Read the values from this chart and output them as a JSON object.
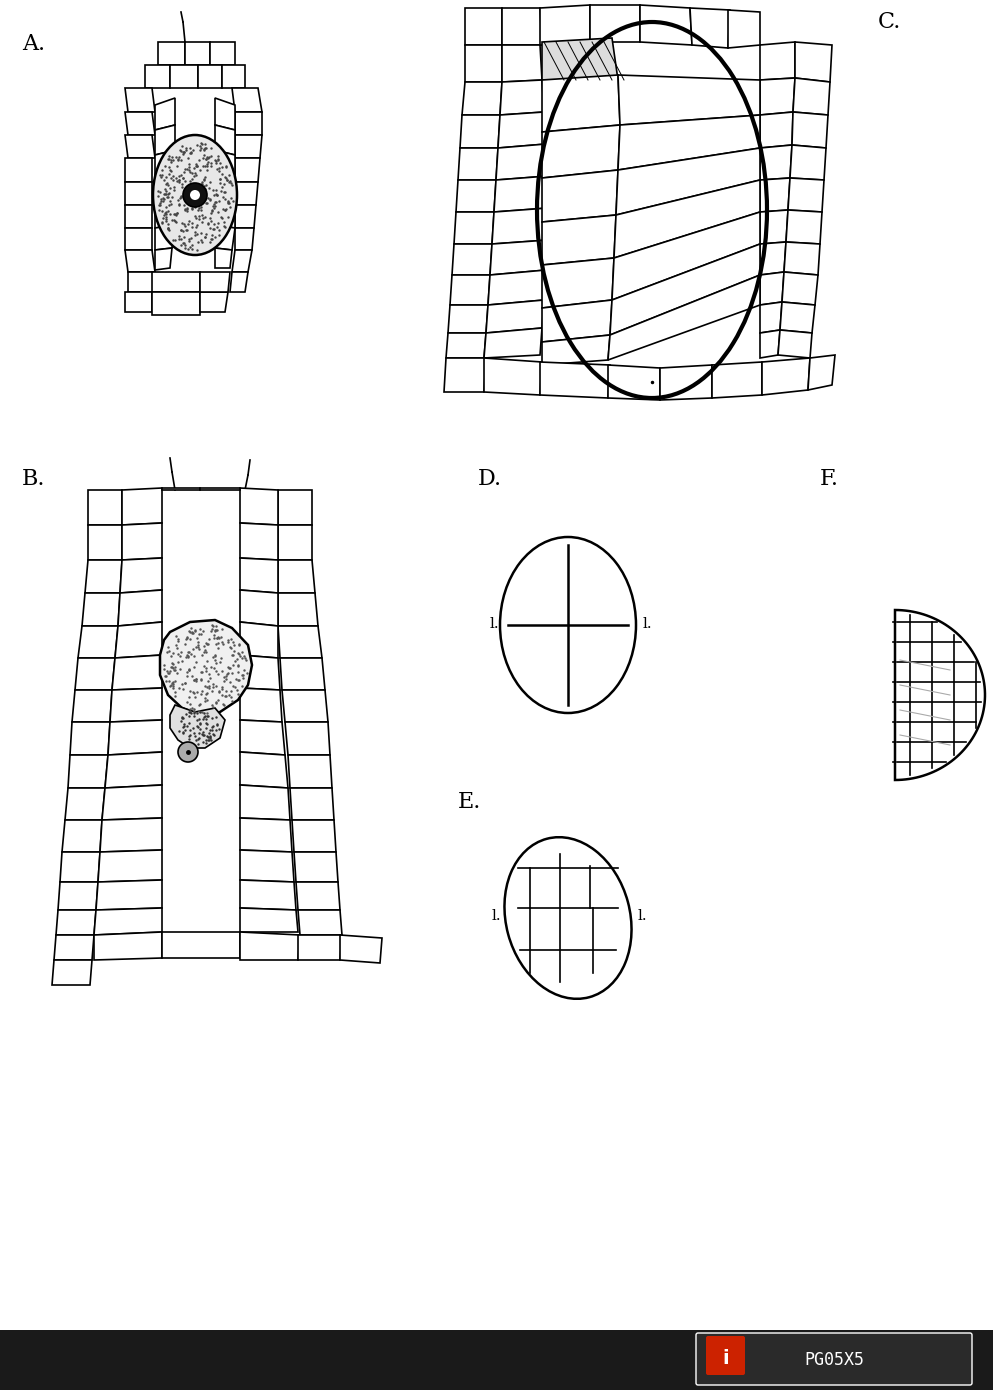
{
  "background_color": "#ffffff",
  "label_A": "A.",
  "label_B": "B.",
  "label_C": "C.",
  "label_D": "D.",
  "label_E": "E.",
  "label_F": "F.",
  "label_l": "l.",
  "fig_width": 9.93,
  "fig_height": 13.9,
  "line_color": "#000000",
  "cell_fill": "#ffffff",
  "speckle_color": "#888888"
}
